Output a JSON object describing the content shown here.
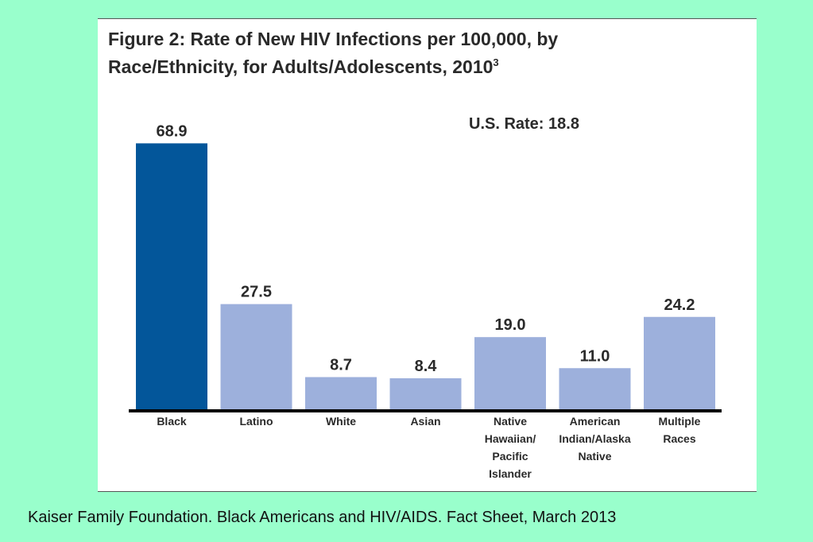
{
  "chart_data": {
    "type": "bar",
    "title": "Figure 2: Rate of New HIV Infections per 100,000, by Race/Ethnicity, for Adults/Adolescents, 2010",
    "title_line1": "Figure 2: Rate of New HIV Infections per 100,000, by",
    "title_line2": "Race/Ethnicity, for Adults/Adolescents, 2010",
    "title_superscript": "3",
    "annotation": "U.S. Rate: 18.8",
    "categories": [
      "Black",
      "Latino",
      "White",
      "Asian",
      "Native Hawaiian/ Pacific Islander",
      "American Indian/Alaska Native",
      "Multiple Races"
    ],
    "category_label_lines": [
      [
        "Black"
      ],
      [
        "Latino"
      ],
      [
        "White"
      ],
      [
        "Asian"
      ],
      [
        "Native",
        "Hawaiian/",
        "Pacific",
        "Islander"
      ],
      [
        "American",
        "Indian/Alaska",
        "Native"
      ],
      [
        "Multiple",
        "Races"
      ]
    ],
    "values": [
      68.9,
      27.5,
      8.7,
      8.4,
      19.0,
      11.0,
      24.2
    ],
    "value_labels": [
      "68.9",
      "27.5",
      "8.7",
      "8.4",
      "19.0",
      "11.0",
      "24.2"
    ],
    "ylim": [
      0,
      70
    ],
    "xlabel": "",
    "ylabel": "",
    "grid": false,
    "colors": {
      "highlight": "#03569a",
      "default": "#9db0dc",
      "axis": "#000000",
      "text": "#2a2a2a"
    }
  },
  "citation": "Kaiser Family Foundation. Black Americans and HIV/AIDS. Fact Sheet, March 2013"
}
